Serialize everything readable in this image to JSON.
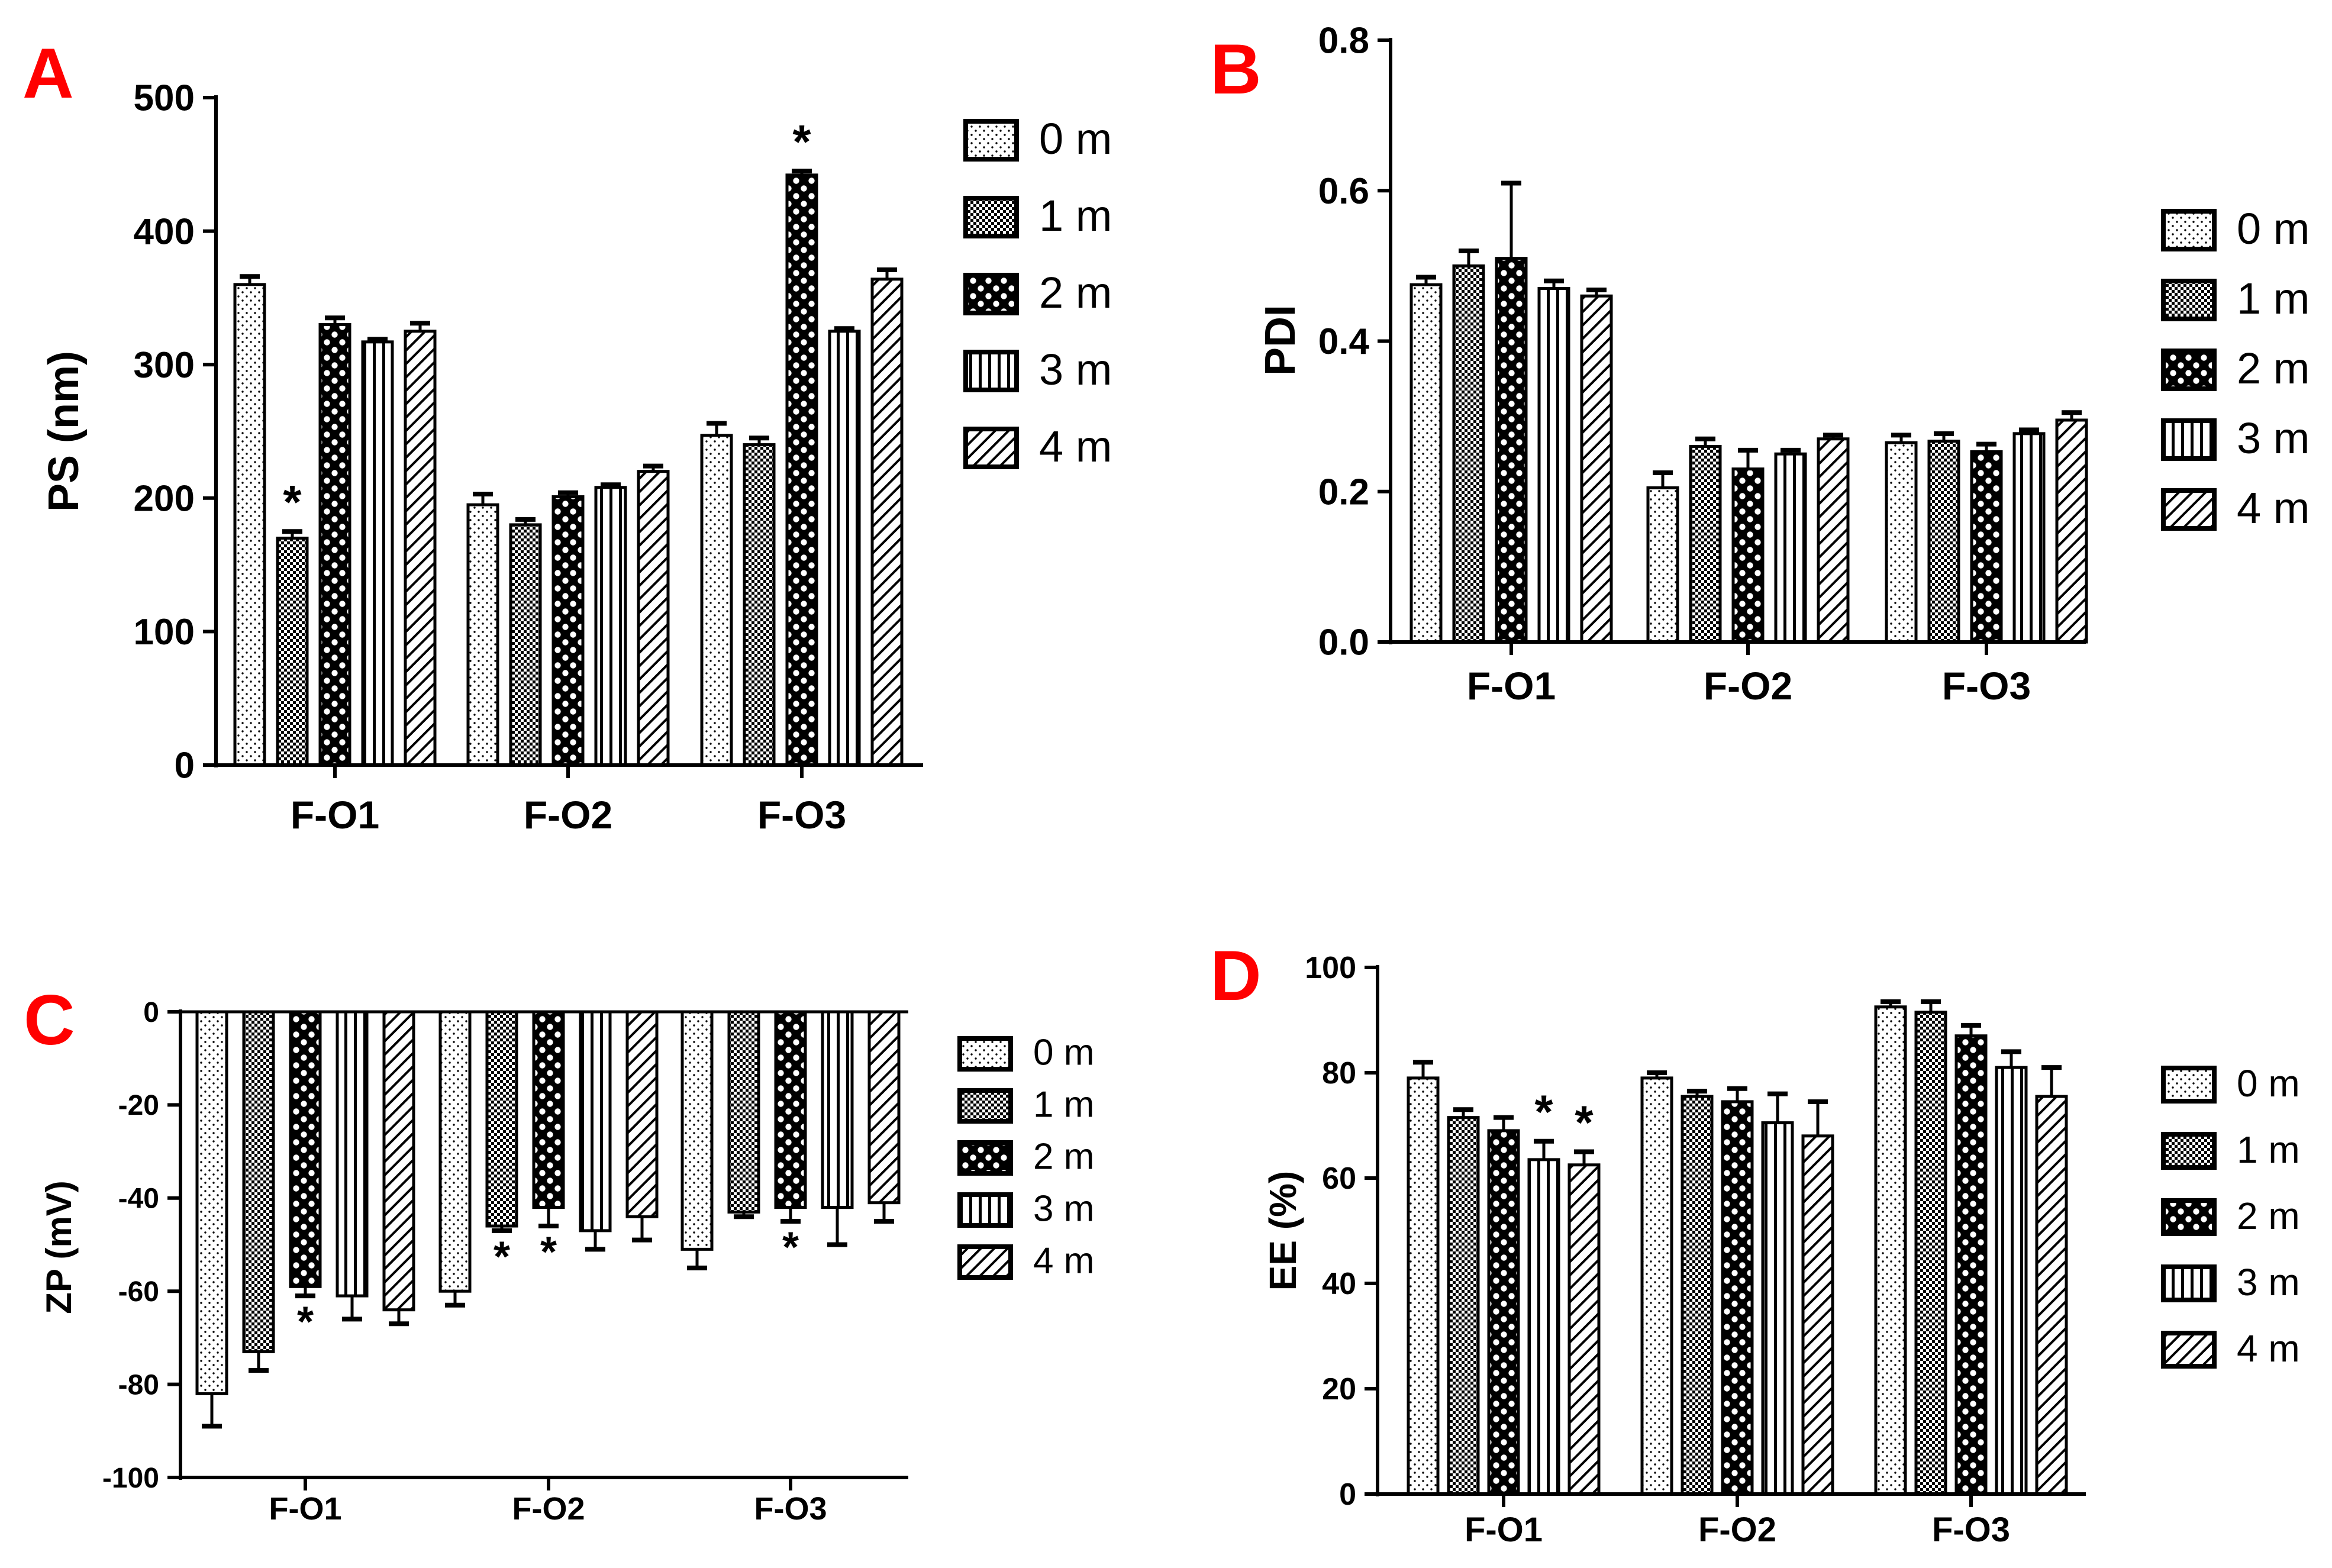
{
  "chart_data": [
    {
      "panel": "A",
      "type": "bar",
      "ylabel": "PS (nm)",
      "ylim": [
        0,
        500
      ],
      "yticks": [
        "0",
        "100",
        "200",
        "300",
        "400",
        "500"
      ],
      "categories": [
        "F-O1",
        "F-O2",
        "F-O3"
      ],
      "series": [
        {
          "name": "0 m",
          "values": [
            360,
            195,
            247
          ],
          "errors": [
            6,
            8,
            9
          ]
        },
        {
          "name": "1 m",
          "values": [
            170,
            180,
            240
          ],
          "errors": [
            5,
            4,
            5
          ]
        },
        {
          "name": "2 m",
          "values": [
            330,
            201,
            442
          ],
          "errors": [
            5,
            3,
            3
          ]
        },
        {
          "name": "3 m",
          "values": [
            317,
            208,
            325
          ],
          "errors": [
            2,
            2,
            2
          ]
        },
        {
          "name": "4 m",
          "values": [
            325,
            220,
            364
          ],
          "errors": [
            6,
            4,
            7
          ]
        }
      ],
      "annotations": [
        {
          "category": "F-O1",
          "series": "1 m",
          "text": "*"
        },
        {
          "category": "F-O3",
          "series": "2 m",
          "text": "*"
        }
      ]
    },
    {
      "panel": "B",
      "type": "bar",
      "ylabel": "PDI",
      "ylim": [
        0,
        0.8
      ],
      "yticks": [
        "0.0",
        "0.2",
        "0.4",
        "0.6",
        "0.8"
      ],
      "categories": [
        "F-O1",
        "F-O2",
        "F-O3"
      ],
      "series": [
        {
          "name": "0 m",
          "values": [
            0.475,
            0.205,
            0.265
          ],
          "errors": [
            0.01,
            0.02,
            0.01
          ]
        },
        {
          "name": "1 m",
          "values": [
            0.5,
            0.26,
            0.267
          ],
          "errors": [
            0.02,
            0.01,
            0.01
          ]
        },
        {
          "name": "2 m",
          "values": [
            0.51,
            0.23,
            0.253
          ],
          "errors": [
            0.1,
            0.025,
            0.01
          ]
        },
        {
          "name": "3 m",
          "values": [
            0.47,
            0.25,
            0.277
          ],
          "errors": [
            0.01,
            0.005,
            0.005
          ]
        },
        {
          "name": "4 m",
          "values": [
            0.46,
            0.27,
            0.295
          ],
          "errors": [
            0.008,
            0.005,
            0.01
          ]
        }
      ],
      "annotations": []
    },
    {
      "panel": "C",
      "type": "bar",
      "ylabel": "ZP (mV)",
      "ylim": [
        -100,
        0
      ],
      "yticks": [
        "0",
        "-20",
        "-40",
        "-60",
        "-80",
        "-100"
      ],
      "categories": [
        "F-O1",
        "F-O2",
        "F-O3"
      ],
      "series": [
        {
          "name": "0 m",
          "values": [
            -82,
            -60,
            -51
          ],
          "errors": [
            7,
            3,
            4
          ]
        },
        {
          "name": "1 m",
          "values": [
            -73,
            -46,
            -43
          ],
          "errors": [
            4,
            1,
            1
          ]
        },
        {
          "name": "2 m",
          "values": [
            -59,
            -42,
            -42
          ],
          "errors": [
            2,
            4,
            3
          ]
        },
        {
          "name": "3 m",
          "values": [
            -61,
            -47,
            -42
          ],
          "errors": [
            5,
            4,
            8
          ]
        },
        {
          "name": "4 m",
          "values": [
            -64,
            -44,
            -41
          ],
          "errors": [
            3,
            5,
            4
          ]
        }
      ],
      "annotations": [
        {
          "category": "F-O1",
          "series": "2 m",
          "text": "*"
        },
        {
          "category": "F-O2",
          "series": "1 m",
          "text": "*"
        },
        {
          "category": "F-O2",
          "series": "2 m",
          "text": "*"
        },
        {
          "category": "F-O3",
          "series": "2 m",
          "text": "*"
        }
      ]
    },
    {
      "panel": "D",
      "type": "bar",
      "ylabel": "EE (%)",
      "ylim": [
        0,
        100
      ],
      "yticks": [
        "0",
        "20",
        "40",
        "60",
        "80",
        "100"
      ],
      "categories": [
        "F-O1",
        "F-O2",
        "F-O3"
      ],
      "series": [
        {
          "name": "0 m",
          "values": [
            79,
            79,
            92.5
          ],
          "errors": [
            3,
            1,
            1
          ]
        },
        {
          "name": "1 m",
          "values": [
            71.5,
            75.5,
            91.5
          ],
          "errors": [
            1.5,
            1,
            2
          ]
        },
        {
          "name": "2 m",
          "values": [
            69,
            74.5,
            87
          ],
          "errors": [
            2.5,
            2.5,
            2
          ]
        },
        {
          "name": "3 m",
          "values": [
            63.5,
            70.5,
            81
          ],
          "errors": [
            3.5,
            5.5,
            3
          ]
        },
        {
          "name": "4 m",
          "values": [
            62.5,
            68,
            75.5
          ],
          "errors": [
            2.5,
            6.5,
            5.5
          ]
        }
      ],
      "annotations": [
        {
          "category": "F-O1",
          "series": "3 m",
          "text": "*"
        },
        {
          "category": "F-O1",
          "series": "4 m",
          "text": "*"
        }
      ]
    }
  ]
}
